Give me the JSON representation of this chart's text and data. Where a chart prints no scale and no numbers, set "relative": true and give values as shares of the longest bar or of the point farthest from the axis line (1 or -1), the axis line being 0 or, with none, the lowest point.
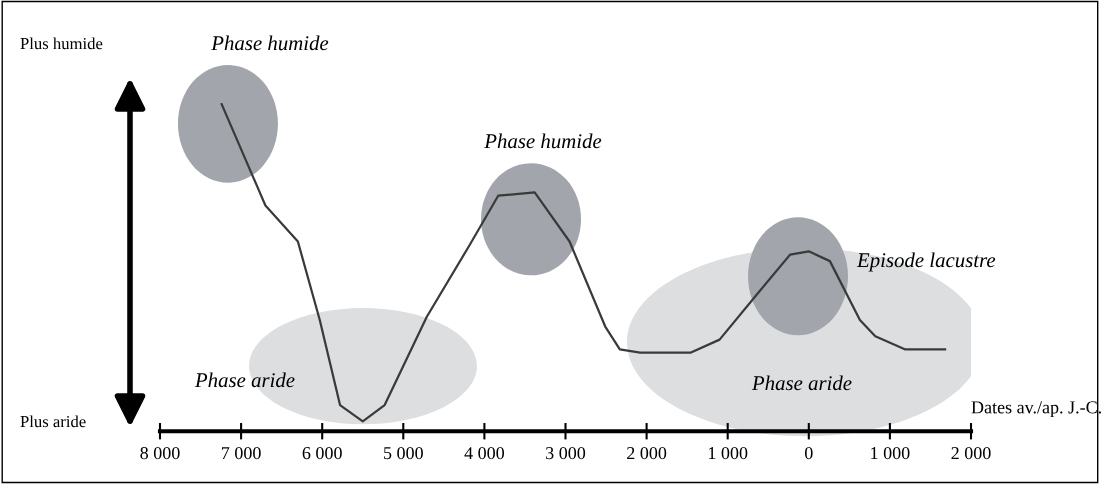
{
  "chart_data": {
    "type": "line",
    "relative": true,
    "xlabel": "Dates av./ap. J.-C.",
    "x": [
      -7240,
      -6700,
      -6300,
      -6030,
      -5780,
      -5500,
      -5230,
      -4710,
      -4180,
      -3830,
      -3380,
      -2950,
      -2510,
      -2330,
      -2080,
      -1460,
      -1100,
      -600,
      -230,
      0,
      260,
      630,
      820,
      1190,
      1680
    ],
    "series": [
      {
        "color": "#3a3a3a",
        "values": [
          1.0,
          0.69,
          0.58,
          0.34,
          0.08,
          0.03,
          0.08,
          0.35,
          0.57,
          0.72,
          0.73,
          0.58,
          0.32,
          0.25,
          0.24,
          0.24,
          0.28,
          0.43,
          0.54,
          0.55,
          0.52,
          0.34,
          0.29,
          0.25,
          0.25
        ]
      }
    ],
    "xlim": [
      -8000,
      2000
    ],
    "xticks": [
      {
        "value": -8000,
        "label": "8 000"
      },
      {
        "value": -7000,
        "label": "7 000"
      },
      {
        "value": -6000,
        "label": "6 000"
      },
      {
        "value": -5000,
        "label": "5 000"
      },
      {
        "value": -4000,
        "label": "4 000"
      },
      {
        "value": -3000,
        "label": "3 000"
      },
      {
        "value": -2000,
        "label": "2 000"
      },
      {
        "value": -1000,
        "label": "1 000"
      },
      0,
      {
        "value": 1000,
        "label": "1 000"
      },
      {
        "value": 2000,
        "label": "2 000"
      }
    ],
    "annotations": [
      "Plus humide",
      "Plus aride",
      "Phase humide",
      "Phase humide",
      "Episode lacustre",
      "Phase aride",
      "Phase aride"
    ],
    "marker": "none",
    "line_style": "solid"
  }
}
